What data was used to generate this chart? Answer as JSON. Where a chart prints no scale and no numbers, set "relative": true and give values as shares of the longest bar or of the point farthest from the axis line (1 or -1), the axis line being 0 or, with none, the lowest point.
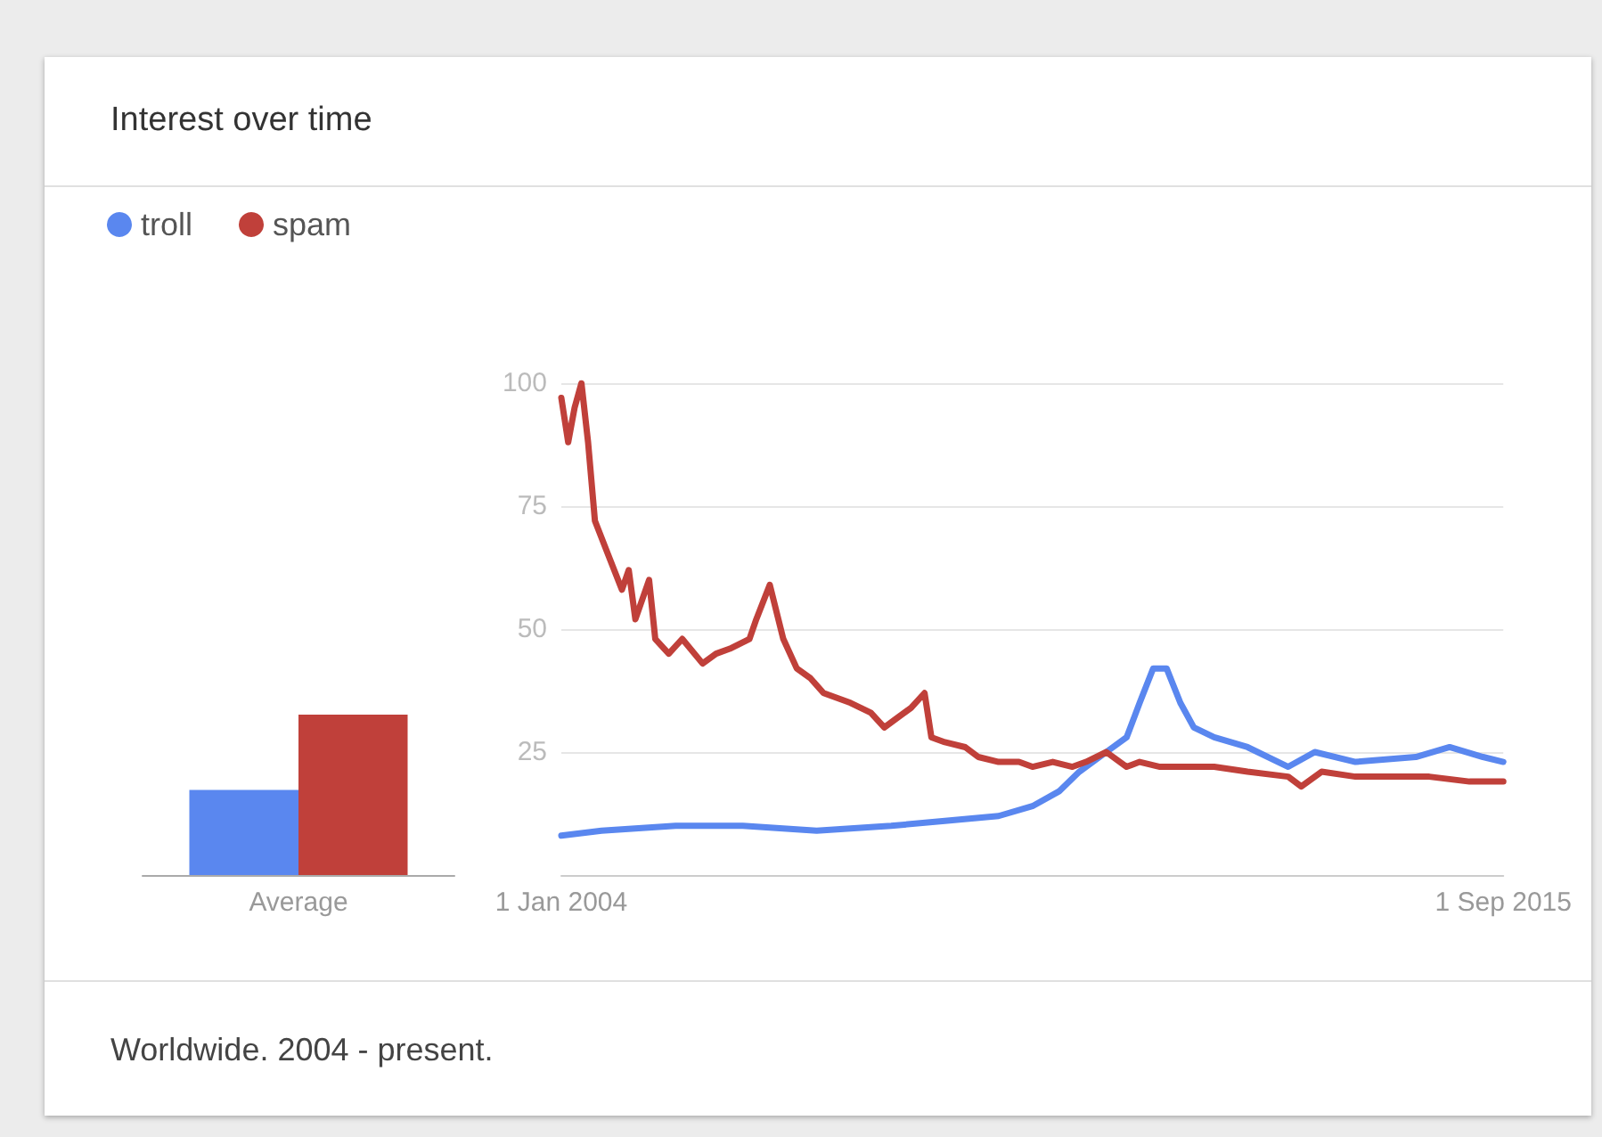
{
  "chart_data": [
    {
      "type": "bar",
      "title": "Interest over time",
      "relative": true,
      "categories": [
        "Average"
      ],
      "legend": "top left",
      "grid": false,
      "series": [
        {
          "name": "troll",
          "color": "#5a87ef",
          "values": [
            0.53
          ]
        },
        {
          "name": "spam",
          "color": "#c0403a",
          "values": [
            1
          ]
        }
      ]
    },
    {
      "type": "line",
      "annotations": [
        "Worldwide. 2004 - present."
      ],
      "xlim": [
        "2004-01",
        "2015-09"
      ],
      "xticks": [
        {
          "value": "2004-01",
          "label": "1 Jan 2004"
        },
        {
          "value": "2015-09",
          "label": "1 Sep 2015"
        }
      ],
      "ylim": [
        0,
        100
      ],
      "yticks": [
        25,
        50,
        75,
        100
      ],
      "grid": "y",
      "marker": "none",
      "line_style": "solid",
      "series": [
        {
          "color": "#5a87ef",
          "x": [
            "2004-01",
            "2004-07",
            "2005-06",
            "2006-04",
            "2007-03",
            "2008-02",
            "2008-10",
            "2009-06",
            "2009-11",
            "2010-03",
            "2010-06",
            "2010-10",
            "2011-01",
            "2011-03",
            "2011-05",
            "2011-07",
            "2011-09",
            "2011-11",
            "2012-02",
            "2012-07",
            "2013-01",
            "2013-05",
            "2013-11",
            "2014-08",
            "2015-01",
            "2015-06",
            "2015-09"
          ],
          "values": [
            8,
            9,
            10,
            10,
            9,
            10,
            11,
            12,
            14,
            17,
            21,
            25,
            28,
            35,
            42,
            42,
            35,
            30,
            28,
            26,
            22,
            25,
            23,
            24,
            26,
            24,
            23
          ]
        },
        {
          "color": "#c0403a",
          "x": [
            "2004-01",
            "2004-02",
            "2004-03",
            "2004-04",
            "2004-05",
            "2004-06",
            "2004-08",
            "2004-10",
            "2004-11",
            "2004-12",
            "2005-02",
            "2005-03",
            "2005-05",
            "2005-07",
            "2005-10",
            "2005-12",
            "2006-02",
            "2006-05",
            "2006-06",
            "2006-08",
            "2006-10",
            "2006-12",
            "2007-02",
            "2007-04",
            "2007-06",
            "2007-08",
            "2007-11",
            "2008-01",
            "2008-03",
            "2008-05",
            "2008-07",
            "2008-08",
            "2008-10",
            "2009-01",
            "2009-03",
            "2009-06",
            "2009-09",
            "2009-11",
            "2010-02",
            "2010-05",
            "2010-07",
            "2010-10",
            "2011-01",
            "2011-03",
            "2011-06",
            "2011-09",
            "2012-02",
            "2012-07",
            "2013-01",
            "2013-03",
            "2013-06",
            "2013-11",
            "2014-05",
            "2014-10",
            "2015-04",
            "2015-09"
          ],
          "values": [
            97,
            88,
            95,
            100,
            88,
            72,
            65,
            58,
            62,
            52,
            60,
            48,
            45,
            48,
            43,
            45,
            46,
            48,
            52,
            59,
            48,
            42,
            40,
            37,
            36,
            35,
            33,
            30,
            32,
            34,
            37,
            28,
            27,
            26,
            24,
            23,
            23,
            22,
            23,
            22,
            23,
            25,
            22,
            23,
            22,
            22,
            22,
            21,
            20,
            18,
            21,
            20,
            20,
            20,
            19,
            19
          ]
        }
      ]
    }
  ]
}
